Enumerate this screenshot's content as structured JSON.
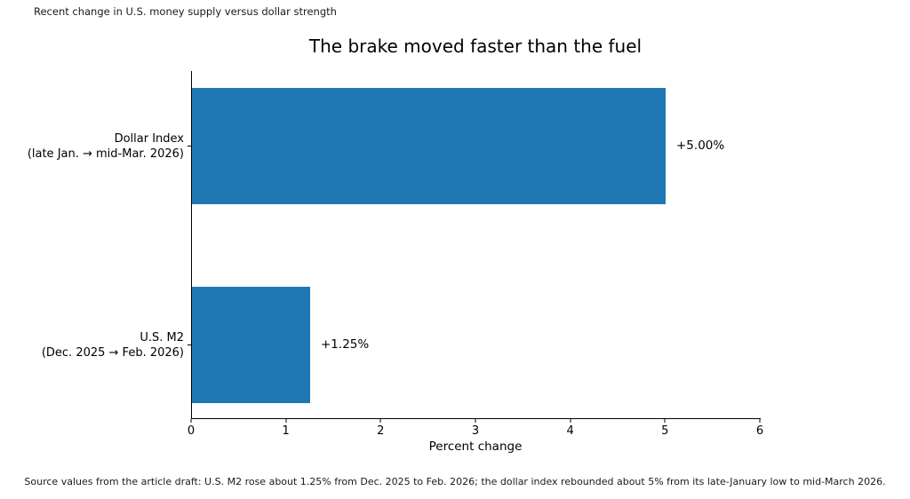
{
  "figure": {
    "suptitle": "Recent change in U.S. money supply versus dollar strength",
    "source_note": "Source values from the article draft: U.S. M2 rose about 1.25% from Dec. 2025 to Feb. 2026; the dollar index rebounded about 5% from its late-January low to mid-March 2026."
  },
  "chart_data": {
    "type": "bar",
    "orientation": "horizontal",
    "title": "The brake moved faster than the fuel",
    "categories": [
      {
        "line1": "Dollar Index",
        "line2": "(late Jan. → mid-Mar. 2026)"
      },
      {
        "line1": "U.S. M2",
        "line2": "(Dec. 2025 → Feb. 2026)"
      }
    ],
    "values": [
      5.0,
      1.25
    ],
    "value_labels": [
      "+5.00%",
      "+1.25%"
    ],
    "xlabel": "Percent change",
    "xlim": [
      0,
      6
    ],
    "xticks": [
      0,
      1,
      2,
      3,
      4,
      5,
      6
    ],
    "bar_color": "#1f77b4",
    "grid": false,
    "legend": null
  }
}
